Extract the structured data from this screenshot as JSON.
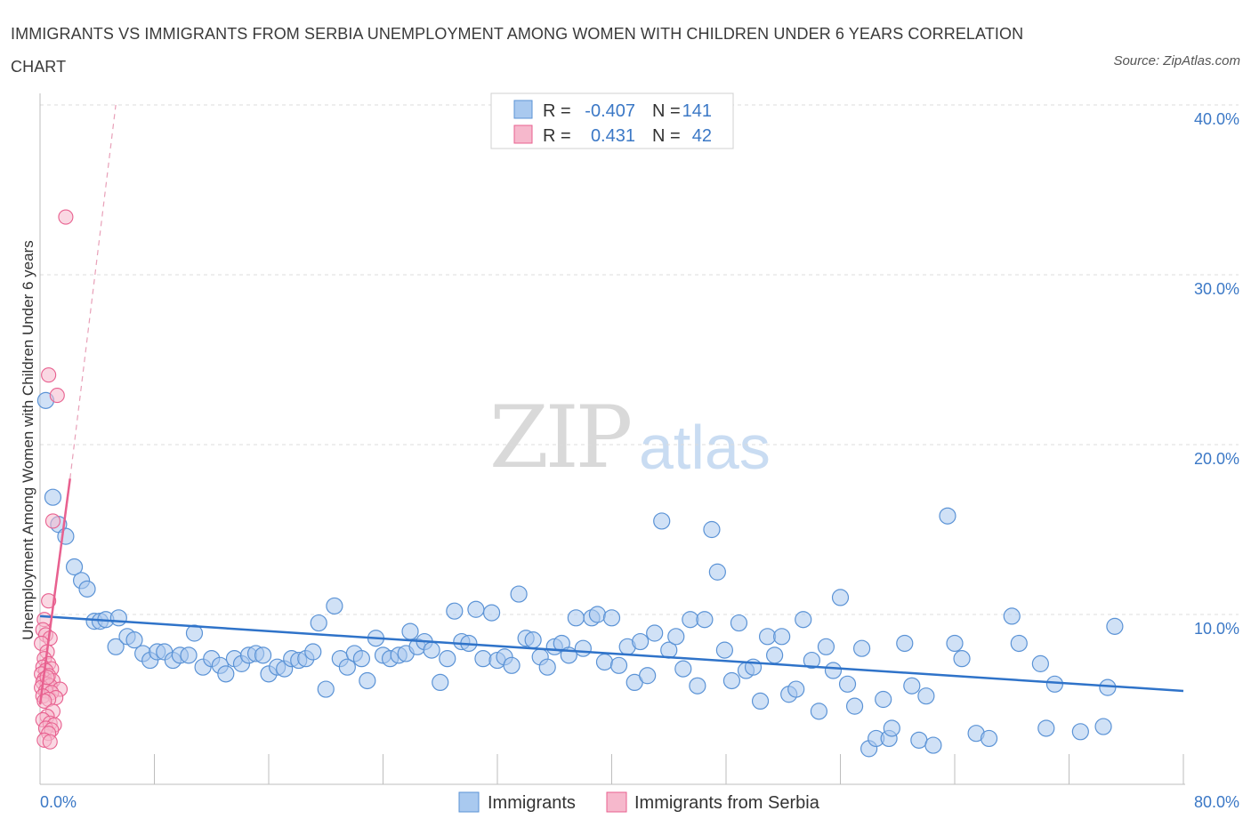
{
  "title": "IMMIGRANTS VS IMMIGRANTS FROM SERBIA UNEMPLOYMENT AMONG WOMEN WITH CHILDREN UNDER 6 YEARS CORRELATION CHART",
  "source": "Source: ZipAtlas.com",
  "watermark": {
    "zip": "ZIP",
    "atlas": "atlas"
  },
  "colors": {
    "blue": "#5b93d6",
    "blue_fill": "#a9c9ef",
    "pink": "#e8608f",
    "pink_fill": "#f6b8cc",
    "tick": "#3b78c6"
  },
  "stats_legend": {
    "rows": [
      {
        "r_label": "R =",
        "r_value": "-0.407",
        "n_label": "N =",
        "n_value": "141"
      },
      {
        "r_label": "R =",
        "r_value": "0.431",
        "n_label": "N =",
        "n_value": "42"
      }
    ]
  },
  "chart_data": {
    "type": "scatter",
    "title": "IMMIGRANTS VS IMMIGRANTS FROM SERBIA UNEMPLOYMENT AMONG WOMEN WITH CHILDREN UNDER 6 YEARS CORRELATION CHART",
    "xlabel": "",
    "ylabel": "Unemployment Among Women with Children Under 6 years",
    "xlim": [
      0,
      80
    ],
    "ylim": [
      0,
      40
    ],
    "x_tick_labels": [
      {
        "value": 0,
        "label": "0.0%"
      },
      {
        "value": 80,
        "label": "80.0%"
      }
    ],
    "y_tick_labels": [
      {
        "value": 10,
        "label": "10.0%"
      },
      {
        "value": 20,
        "label": "20.0%"
      },
      {
        "value": 30,
        "label": "30.0%"
      },
      {
        "value": 40,
        "label": "40.0%"
      }
    ],
    "series": [
      {
        "name": "Immigrants",
        "color": "#5b93d6",
        "R": -0.407,
        "N": 141,
        "trend": {
          "x": [
            0,
            80
          ],
          "y": [
            9.9,
            5.5
          ]
        },
        "points": [
          [
            0.4,
            22.6
          ],
          [
            0.9,
            16.9
          ],
          [
            1.3,
            15.3
          ],
          [
            1.8,
            14.6
          ],
          [
            2.4,
            12.8
          ],
          [
            2.9,
            12.0
          ],
          [
            3.3,
            11.5
          ],
          [
            3.8,
            9.6
          ],
          [
            4.2,
            9.6
          ],
          [
            4.6,
            9.7
          ],
          [
            5.5,
            9.8
          ],
          [
            5.3,
            8.1
          ],
          [
            6.1,
            8.7
          ],
          [
            6.6,
            8.5
          ],
          [
            7.2,
            7.7
          ],
          [
            7.7,
            7.3
          ],
          [
            8.2,
            7.8
          ],
          [
            8.7,
            7.8
          ],
          [
            9.3,
            7.3
          ],
          [
            9.8,
            7.6
          ],
          [
            10.4,
            7.6
          ],
          [
            10.8,
            8.9
          ],
          [
            11.4,
            6.9
          ],
          [
            12.0,
            7.4
          ],
          [
            12.6,
            7.0
          ],
          [
            13.0,
            6.5
          ],
          [
            13.6,
            7.4
          ],
          [
            14.1,
            7.1
          ],
          [
            14.6,
            7.6
          ],
          [
            15.1,
            7.7
          ],
          [
            15.6,
            7.6
          ],
          [
            16.0,
            6.5
          ],
          [
            16.6,
            6.9
          ],
          [
            17.1,
            6.8
          ],
          [
            17.6,
            7.4
          ],
          [
            18.1,
            7.3
          ],
          [
            18.6,
            7.4
          ],
          [
            19.1,
            7.8
          ],
          [
            19.5,
            9.5
          ],
          [
            20.0,
            5.6
          ],
          [
            20.6,
            10.5
          ],
          [
            21.0,
            7.4
          ],
          [
            21.5,
            6.9
          ],
          [
            22.0,
            7.7
          ],
          [
            22.5,
            7.4
          ],
          [
            22.9,
            6.1
          ],
          [
            23.5,
            8.6
          ],
          [
            24.0,
            7.6
          ],
          [
            24.5,
            7.4
          ],
          [
            25.1,
            7.6
          ],
          [
            25.6,
            7.7
          ],
          [
            25.9,
            9.0
          ],
          [
            26.4,
            8.1
          ],
          [
            26.9,
            8.4
          ],
          [
            27.4,
            7.9
          ],
          [
            28.0,
            6.0
          ],
          [
            28.5,
            7.4
          ],
          [
            29.0,
            10.2
          ],
          [
            29.5,
            8.4
          ],
          [
            30.0,
            8.3
          ],
          [
            30.5,
            10.3
          ],
          [
            31.0,
            7.4
          ],
          [
            31.6,
            10.1
          ],
          [
            32.0,
            7.3
          ],
          [
            32.5,
            7.5
          ],
          [
            33.0,
            7.0
          ],
          [
            33.5,
            11.2
          ],
          [
            34.0,
            8.6
          ],
          [
            34.5,
            8.5
          ],
          [
            35.0,
            7.5
          ],
          [
            35.5,
            6.9
          ],
          [
            36.0,
            8.1
          ],
          [
            36.5,
            8.3
          ],
          [
            37.0,
            7.6
          ],
          [
            37.5,
            9.8
          ],
          [
            38.0,
            8.0
          ],
          [
            38.6,
            9.8
          ],
          [
            39.0,
            10.0
          ],
          [
            39.5,
            7.2
          ],
          [
            40.0,
            9.8
          ],
          [
            40.5,
            7.0
          ],
          [
            41.1,
            8.1
          ],
          [
            41.6,
            6.0
          ],
          [
            42.0,
            8.4
          ],
          [
            42.5,
            6.4
          ],
          [
            43.0,
            8.9
          ],
          [
            43.5,
            15.5
          ],
          [
            44.0,
            7.9
          ],
          [
            44.5,
            8.7
          ],
          [
            45.0,
            6.8
          ],
          [
            45.5,
            9.7
          ],
          [
            46.0,
            5.8
          ],
          [
            46.5,
            9.7
          ],
          [
            47.0,
            15.0
          ],
          [
            47.4,
            12.5
          ],
          [
            47.9,
            7.9
          ],
          [
            48.4,
            6.1
          ],
          [
            48.9,
            9.5
          ],
          [
            49.4,
            6.7
          ],
          [
            49.9,
            6.9
          ],
          [
            50.4,
            4.9
          ],
          [
            50.9,
            8.7
          ],
          [
            51.4,
            7.6
          ],
          [
            51.9,
            8.7
          ],
          [
            52.4,
            5.3
          ],
          [
            52.9,
            5.6
          ],
          [
            53.4,
            9.7
          ],
          [
            54.0,
            7.3
          ],
          [
            54.5,
            4.3
          ],
          [
            55.0,
            8.1
          ],
          [
            55.5,
            6.7
          ],
          [
            56.0,
            11.0
          ],
          [
            56.5,
            5.9
          ],
          [
            57.0,
            4.6
          ],
          [
            57.5,
            8.0
          ],
          [
            58.0,
            2.1
          ],
          [
            58.5,
            2.7
          ],
          [
            59.0,
            5.0
          ],
          [
            59.4,
            2.7
          ],
          [
            59.6,
            3.3
          ],
          [
            60.5,
            8.3
          ],
          [
            61.0,
            5.8
          ],
          [
            61.5,
            2.6
          ],
          [
            62.0,
            5.2
          ],
          [
            62.5,
            2.3
          ],
          [
            63.5,
            15.8
          ],
          [
            64.0,
            8.3
          ],
          [
            64.5,
            7.4
          ],
          [
            65.5,
            3.0
          ],
          [
            66.4,
            2.7
          ],
          [
            68.0,
            9.9
          ],
          [
            68.5,
            8.3
          ],
          [
            70.0,
            7.1
          ],
          [
            70.4,
            3.3
          ],
          [
            71.0,
            5.9
          ],
          [
            72.8,
            3.1
          ],
          [
            74.4,
            3.4
          ],
          [
            74.7,
            5.7
          ],
          [
            75.2,
            9.3
          ]
        ]
      },
      {
        "name": "Immigrants from Serbia",
        "color": "#e8608f",
        "R": 0.431,
        "N": 42,
        "trend": {
          "x": [
            0,
            2.1
          ],
          "y": [
            4.7,
            18.0
          ]
        },
        "trend_dashed": {
          "x": [
            2.1,
            5.3
          ],
          "y": [
            18.0,
            40.0
          ]
        },
        "points": [
          [
            1.8,
            33.4
          ],
          [
            0.6,
            24.1
          ],
          [
            1.2,
            22.9
          ],
          [
            0.9,
            15.5
          ],
          [
            0.6,
            10.8
          ],
          [
            0.3,
            9.7
          ],
          [
            0.2,
            9.1
          ],
          [
            0.4,
            8.8
          ],
          [
            0.7,
            8.6
          ],
          [
            0.1,
            8.3
          ],
          [
            0.5,
            7.8
          ],
          [
            0.3,
            7.4
          ],
          [
            0.6,
            7.1
          ],
          [
            0.2,
            6.9
          ],
          [
            0.8,
            6.8
          ],
          [
            0.4,
            6.7
          ],
          [
            0.1,
            6.5
          ],
          [
            0.6,
            6.4
          ],
          [
            0.3,
            6.2
          ],
          [
            0.9,
            6.1
          ],
          [
            0.2,
            6.0
          ],
          [
            0.5,
            5.9
          ],
          [
            0.7,
            5.8
          ],
          [
            0.1,
            5.7
          ],
          [
            1.4,
            5.6
          ],
          [
            0.4,
            5.5
          ],
          [
            0.8,
            5.4
          ],
          [
            0.2,
            5.2
          ],
          [
            1.1,
            5.1
          ],
          [
            0.6,
            5.0
          ],
          [
            0.3,
            4.9
          ],
          [
            0.9,
            4.3
          ],
          [
            0.5,
            4.0
          ],
          [
            0.2,
            3.8
          ],
          [
            0.7,
            3.6
          ],
          [
            1.0,
            3.5
          ],
          [
            0.4,
            3.3
          ],
          [
            0.8,
            3.2
          ],
          [
            0.6,
            3.0
          ],
          [
            0.3,
            2.6
          ],
          [
            0.7,
            2.5
          ],
          [
            0.5,
            6.3
          ]
        ]
      }
    ],
    "legend": [
      "Immigrants",
      "Immigrants from Serbia"
    ]
  }
}
